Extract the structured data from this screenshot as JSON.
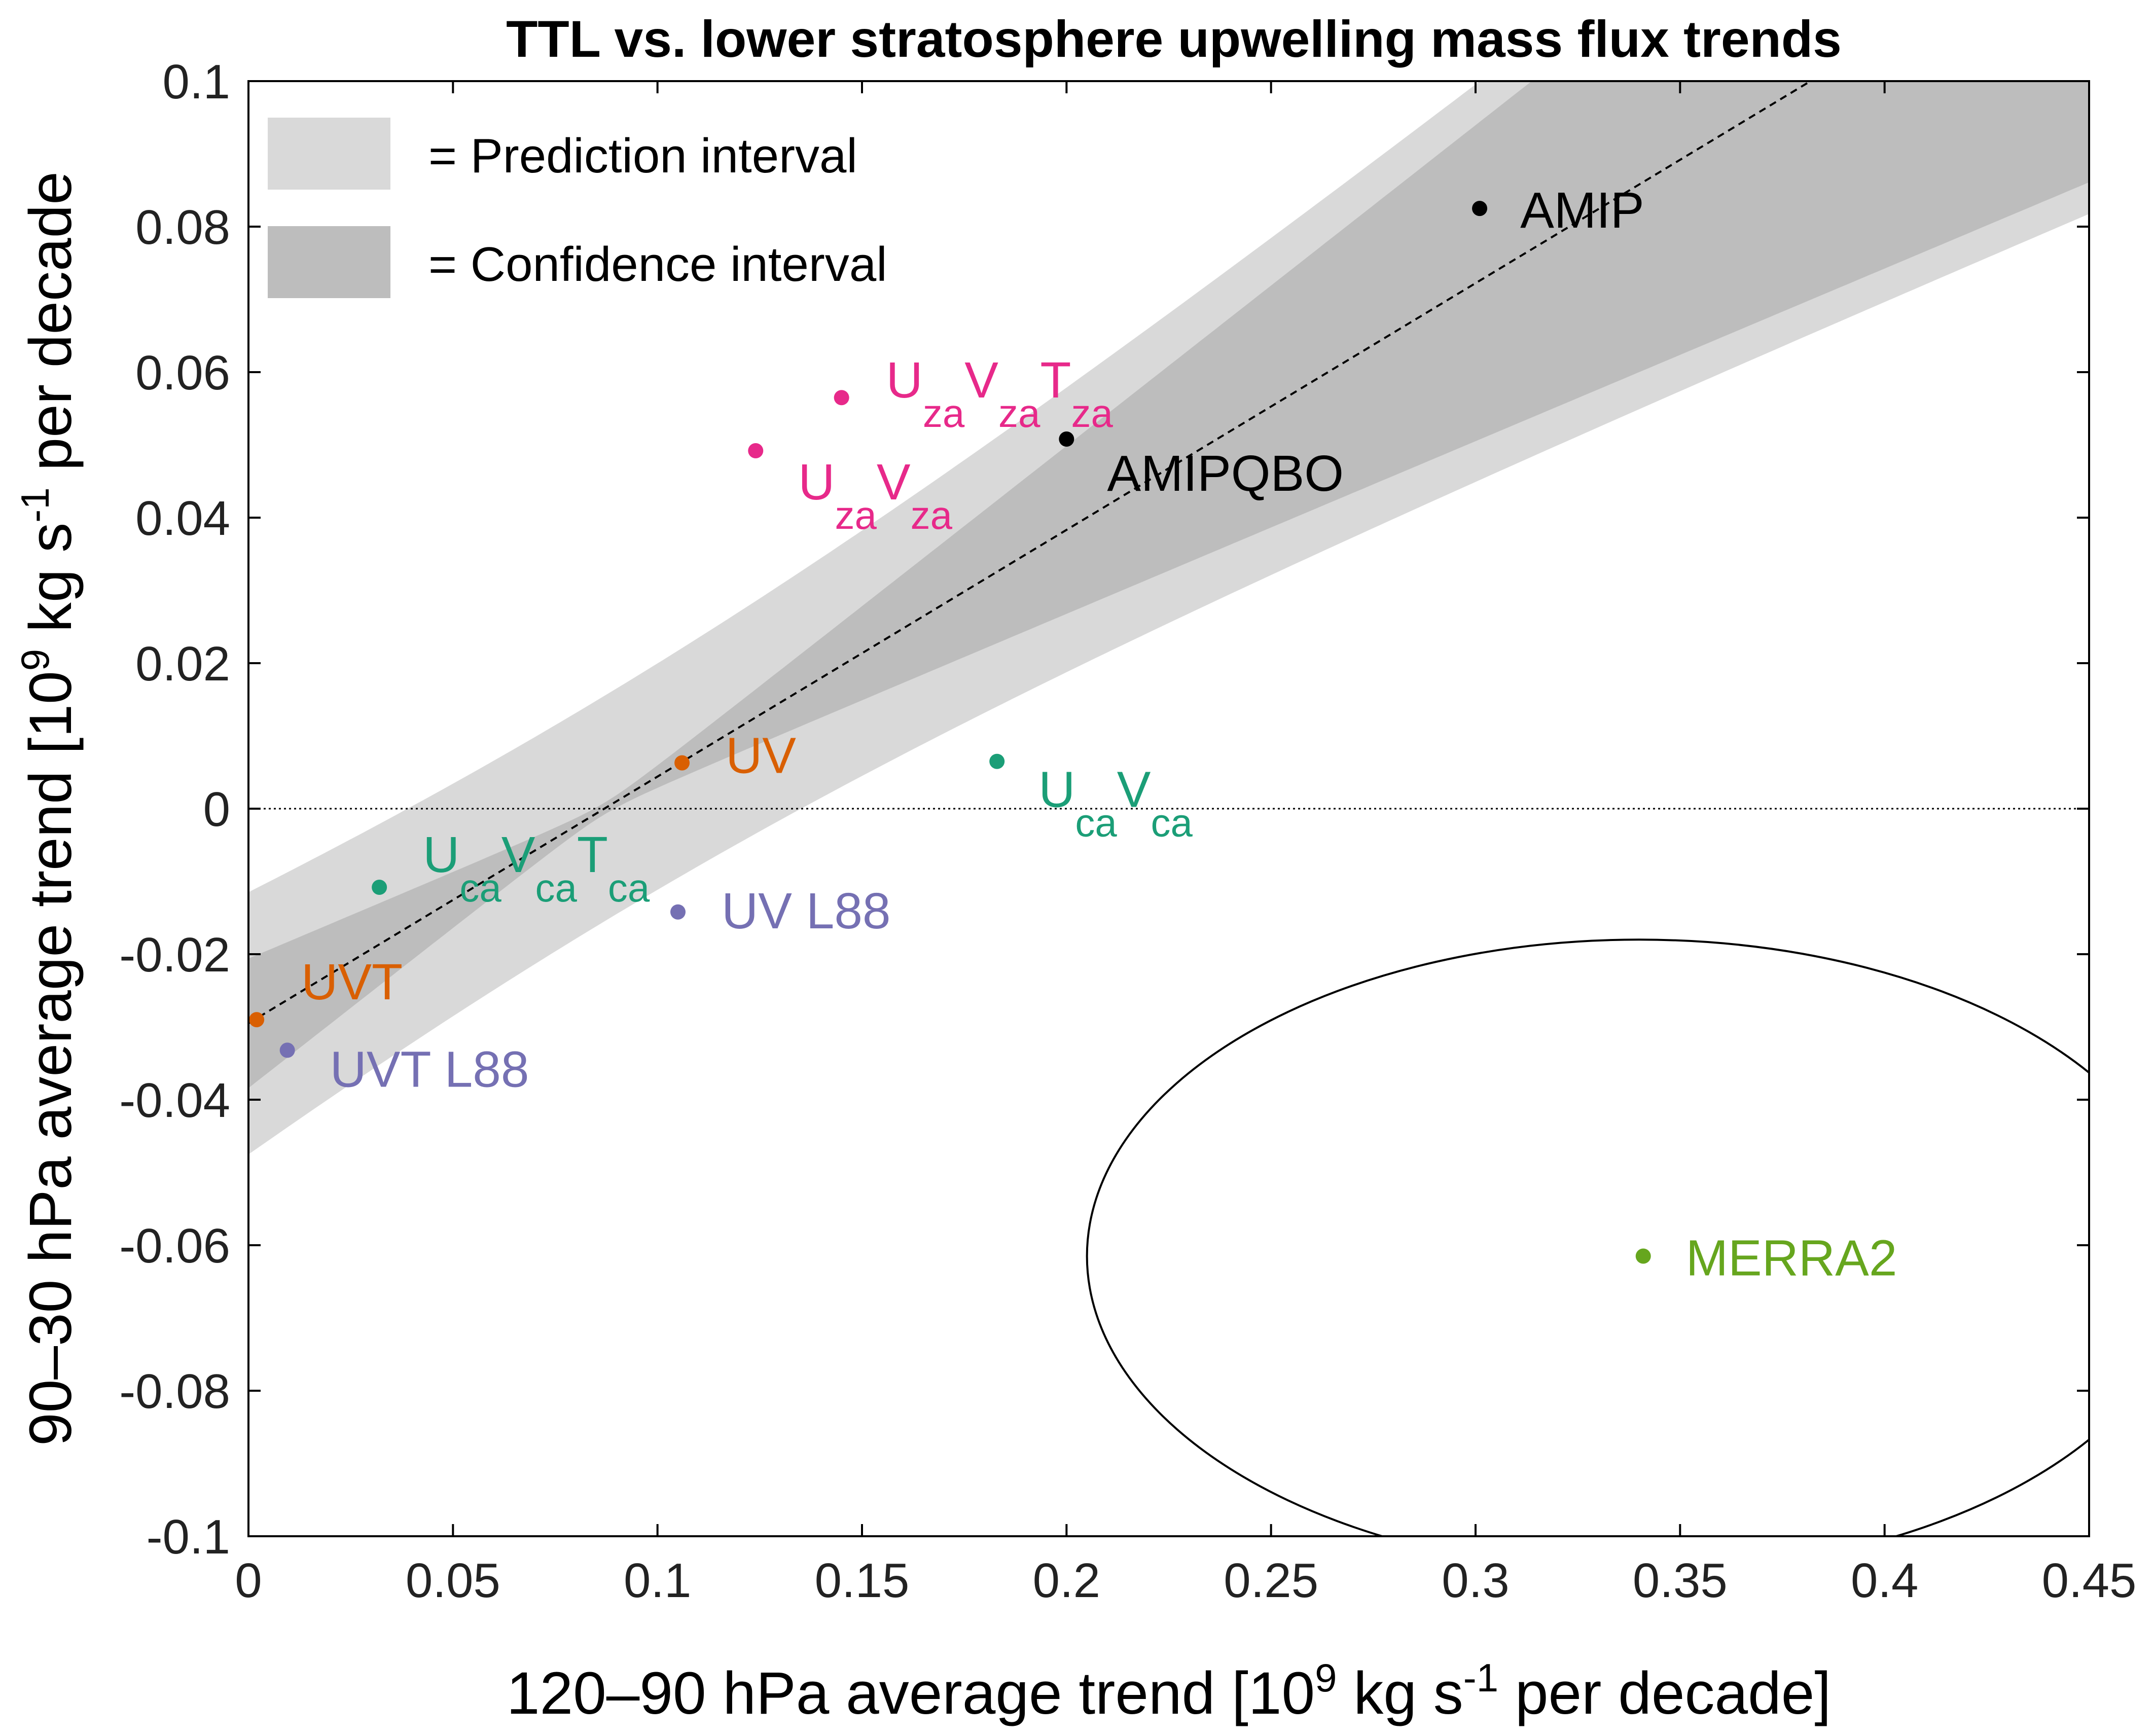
{
  "chart_data": {
    "type": "scatter",
    "title": "TTL vs. lower stratosphere upwelling mass flux trends",
    "xlabel": {
      "pre": "120–90 hPa average trend [10",
      "sup1": "9",
      "mid": " kg s",
      "sup2": "-1",
      "post": " per decade]"
    },
    "ylabel": {
      "pre": "90–30 hPa average trend [10",
      "sup1": "9",
      "mid": " kg s",
      "sup2": "-1",
      "post": " per decade"
    },
    "xlim": [
      0,
      0.45
    ],
    "ylim": [
      -0.1,
      0.1
    ],
    "xticks": [
      0,
      0.05,
      0.1,
      0.15,
      0.2,
      0.25,
      0.3,
      0.35,
      0.4,
      0.45
    ],
    "xticklabels": [
      "0",
      "0.05",
      "0.1",
      "0.15",
      "0.2",
      "0.25",
      "0.3",
      "0.35",
      "0.4",
      "0.45"
    ],
    "yticks": [
      -0.1,
      -0.08,
      -0.06,
      -0.04,
      -0.02,
      0,
      0.02,
      0.04,
      0.06,
      0.08,
      0.1
    ],
    "yticklabels": [
      "-0.1",
      "-0.08",
      "-0.06",
      "-0.04",
      "-0.02",
      "0",
      "0.02",
      "0.04",
      "0.06",
      "0.08",
      "0.1"
    ],
    "legend": {
      "position": "top-left",
      "entries": [
        {
          "label": "= Prediction interval",
          "color": "#d9d9d9"
        },
        {
          "label": "= Confidence interval",
          "color": "#bdbdbd"
        }
      ]
    },
    "regression": {
      "intercept": -0.0295,
      "slope": 0.3391,
      "style": "dashed"
    },
    "band_center_x": 0.087,
    "prediction_band": {
      "halfwidth_at_center": 0.0155,
      "growth": 0.1056
    },
    "confidence_band": {
      "halfwidth_at_center": 0.0008,
      "growth": 0.1019
    },
    "zero_line": {
      "y": 0,
      "style": "dotted"
    },
    "ellipse": {
      "center": [
        0.34,
        -0.0615
      ],
      "radii": [
        0.135,
        0.0435
      ]
    },
    "points": [
      {
        "name": "AMIP",
        "x": 0.301,
        "y": 0.0825,
        "color": "#000000",
        "label": [
          {
            "t": "AMIP"
          }
        ]
      },
      {
        "name": "AMIPQBO",
        "x": 0.2,
        "y": 0.0508,
        "color": "#000000",
        "label": [
          {
            "t": "AMIPQBO"
          }
        ]
      },
      {
        "name": "UzaVzaTza",
        "x": 0.145,
        "y": 0.0565,
        "color": "#e7298a",
        "label": [
          {
            "t": "U"
          },
          {
            "t": "za",
            "sub": true
          },
          {
            "t": "V"
          },
          {
            "t": "za",
            "sub": true
          },
          {
            "t": "T"
          },
          {
            "t": "za",
            "sub": true
          }
        ]
      },
      {
        "name": "UzaVza",
        "x": 0.124,
        "y": 0.0492,
        "color": "#e7298a",
        "label": [
          {
            "t": "U"
          },
          {
            "t": "za",
            "sub": true
          },
          {
            "t": "V"
          },
          {
            "t": "za",
            "sub": true
          }
        ]
      },
      {
        "name": "UV",
        "x": 0.106,
        "y": 0.0063,
        "color": "#d95f02",
        "label": [
          {
            "t": "UV"
          }
        ]
      },
      {
        "name": "UcaVca",
        "x": 0.183,
        "y": 0.0065,
        "color": "#1b9e77",
        "label": [
          {
            "t": "U"
          },
          {
            "t": "ca",
            "sub": true
          },
          {
            "t": "V"
          },
          {
            "t": "ca",
            "sub": true
          }
        ]
      },
      {
        "name": "UcaVcaTca",
        "x": 0.032,
        "y": -0.0108,
        "color": "#1b9e77",
        "label": [
          {
            "t": "U"
          },
          {
            "t": "ca",
            "sub": true
          },
          {
            "t": "V"
          },
          {
            "t": "ca",
            "sub": true
          },
          {
            "t": "T"
          },
          {
            "t": "ca",
            "sub": true
          }
        ]
      },
      {
        "name": "UV L88",
        "x": 0.105,
        "y": -0.0142,
        "color": "#7570b3",
        "label": [
          {
            "t": "UV L88"
          }
        ]
      },
      {
        "name": "UVT",
        "x": 0.002,
        "y": -0.029,
        "color": "#d95f02",
        "label": [
          {
            "t": "UVT"
          }
        ]
      },
      {
        "name": "UVT L88",
        "x": 0.0095,
        "y": -0.0332,
        "color": "#7570b3",
        "label": [
          {
            "t": "UVT L88"
          }
        ]
      },
      {
        "name": "MERRA2",
        "x": 0.341,
        "y": -0.0615,
        "color": "#66a61e",
        "label": [
          {
            "t": "MERRA2"
          }
        ]
      }
    ]
  }
}
